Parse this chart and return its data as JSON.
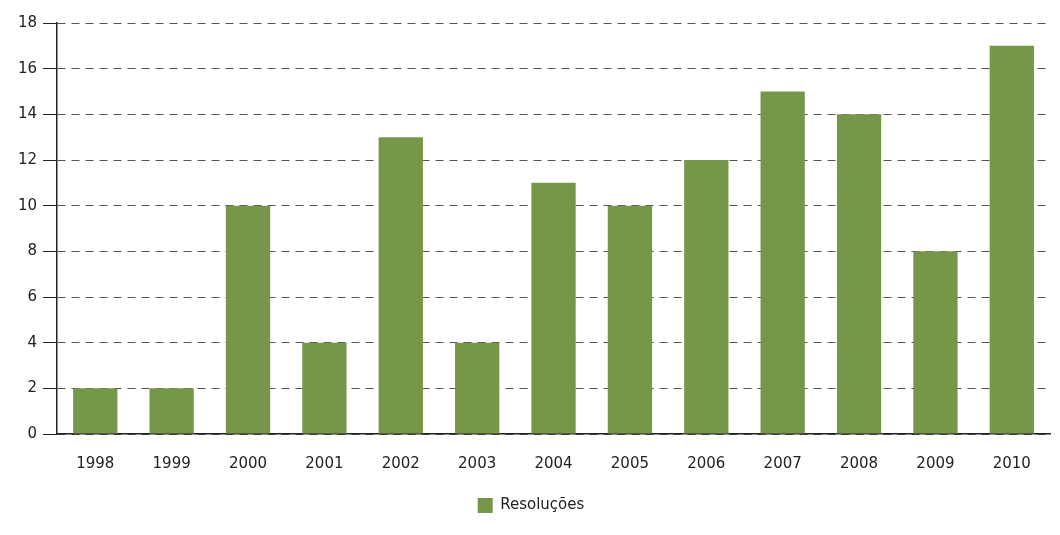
{
  "chart_data": {
    "type": "bar",
    "categories": [
      "1998",
      "1999",
      "2000",
      "2001",
      "2002",
      "2003",
      "2004",
      "2005",
      "2006",
      "2007",
      "2008",
      "2009",
      "2010"
    ],
    "series": [
      {
        "name": "Resoluções",
        "color": "#76974a",
        "values": [
          2,
          2,
          10,
          4,
          13,
          4,
          11,
          10,
          12,
          15,
          14,
          8,
          17
        ]
      }
    ],
    "ylim": [
      0,
      18
    ],
    "yticks": [
      0,
      2,
      4,
      6,
      8,
      10,
      12,
      14,
      16,
      18
    ],
    "grid": "y",
    "legend": "bottom"
  }
}
